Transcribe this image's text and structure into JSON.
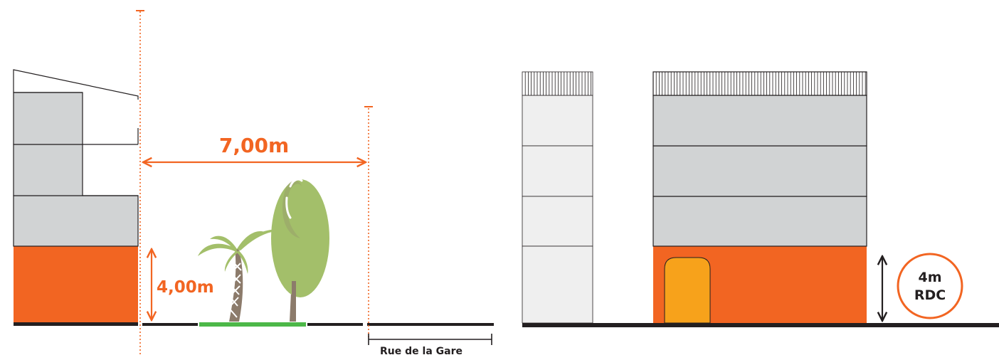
{
  "dimensions": {
    "setback": "7,00m",
    "ground_height": "4,00m"
  },
  "street": {
    "label": "Rue de la Gare"
  },
  "badge": {
    "line1": "4m",
    "line2": "RDC"
  },
  "colors": {
    "accent_orange": "#f26522",
    "door_yellow": "#f7a21b",
    "floor_gray": "#d1d3d4",
    "light_gray": "#efefef",
    "lawn_green": "#4cb848",
    "tree_green": "#a3bf6a",
    "trunk_brown": "#8c7b6b",
    "ground_black": "#231f20"
  },
  "icons": [
    "palm-tree-icon",
    "deciduous-tree-icon",
    "double-arrow-icon"
  ]
}
